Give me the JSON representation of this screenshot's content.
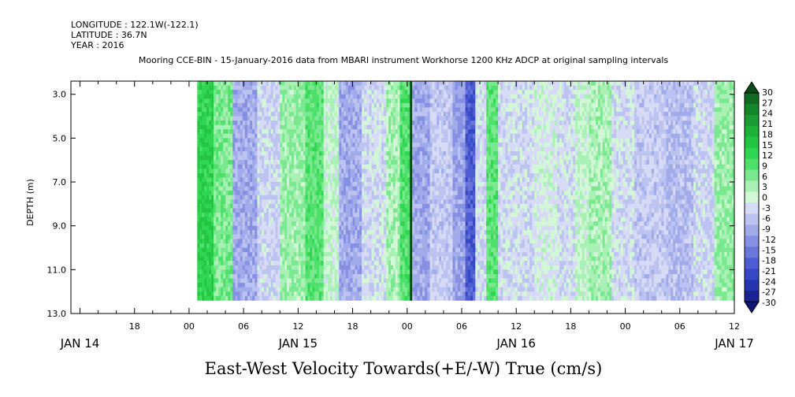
{
  "header": {
    "longitude": "LONGITUDE : 122.1W(-122.1)",
    "latitude": "LATITUDE : 36.7N",
    "year": "YEAR : 2016",
    "subtitle": "Mooring CCE-BIN - 15-January-2016 data from MBARI instrument Workhorse 1200 KHz ADCP at original sampling intervals"
  },
  "chart_data": {
    "type": "heatmap",
    "title": "East-West Velocity Towards(+E/-W) True (cm/s)",
    "ylabel": "DEPTH (m)",
    "y_reversed": true,
    "ylim": [
      13.0,
      2.4
    ],
    "yticks": [
      "3.0",
      "5.0",
      "7.0",
      "9.0",
      "11.0",
      "13.0"
    ],
    "x_unit": "hours since JAN 14 00",
    "xlim": [
      11,
      84
    ],
    "xticks": [
      "18",
      "00",
      "06",
      "12",
      "18",
      "00",
      "06",
      "12",
      "18",
      "00",
      "06",
      "12"
    ],
    "xtick_hours": [
      18,
      24,
      30,
      36,
      42,
      48,
      54,
      60,
      66,
      72,
      78,
      84
    ],
    "date_labels": [
      {
        "label": "JAN 14",
        "hour": 12
      },
      {
        "label": "JAN 15",
        "hour": 36
      },
      {
        "label": "JAN 16",
        "hour": 60
      },
      {
        "label": "JAN 17",
        "hour": 84
      }
    ],
    "data_start_hour": 24.9,
    "data_end_hour": 84,
    "velocity_bands": [
      {
        "from": 24.9,
        "to": 26.7,
        "value": 13
      },
      {
        "from": 26.7,
        "to": 28.8,
        "value": 6
      },
      {
        "from": 28.8,
        "to": 31.5,
        "value": -9
      },
      {
        "from": 31.5,
        "to": 34.0,
        "value": -4
      },
      {
        "from": 34.0,
        "to": 36.8,
        "value": 4
      },
      {
        "from": 36.8,
        "to": 38.8,
        "value": 8
      },
      {
        "from": 38.8,
        "to": 40.5,
        "value": 1
      },
      {
        "from": 40.5,
        "to": 43.0,
        "value": -9
      },
      {
        "from": 43.0,
        "to": 45.7,
        "value": -3
      },
      {
        "from": 45.7,
        "to": 47.2,
        "value": 3
      },
      {
        "from": 47.2,
        "to": 48.3,
        "value": 9
      },
      {
        "from": 48.3,
        "to": 48.55,
        "value": 30
      },
      {
        "from": 48.55,
        "to": 50.5,
        "value": -9
      },
      {
        "from": 50.5,
        "to": 53.0,
        "value": -5
      },
      {
        "from": 53.0,
        "to": 54.4,
        "value": -10
      },
      {
        "from": 54.4,
        "to": 55.5,
        "value": -18
      },
      {
        "from": 55.5,
        "to": 56.7,
        "value": -3
      },
      {
        "from": 56.7,
        "to": 58.0,
        "value": 8
      },
      {
        "from": 58.0,
        "to": 62.0,
        "value": -3
      },
      {
        "from": 62.0,
        "to": 64.5,
        "value": -1
      },
      {
        "from": 64.5,
        "to": 66.5,
        "value": -3
      },
      {
        "from": 66.5,
        "to": 68.0,
        "value": 1
      },
      {
        "from": 68.0,
        "to": 70.5,
        "value": 3
      },
      {
        "from": 70.5,
        "to": 73.0,
        "value": -3
      },
      {
        "from": 73.0,
        "to": 76.5,
        "value": -5
      },
      {
        "from": 76.5,
        "to": 79.5,
        "value": -7
      },
      {
        "from": 79.5,
        "to": 81.8,
        "value": -4
      },
      {
        "from": 81.8,
        "to": 84.0,
        "value": 4
      }
    ],
    "colorbar": {
      "labels": [
        "30",
        "27",
        "24",
        "21",
        "18",
        "15",
        "12",
        "9",
        "6",
        "3",
        "0",
        "-3",
        "-6",
        "-9",
        "-12",
        "-15",
        "-18",
        "-21",
        "-24",
        "-27",
        "-30"
      ],
      "colors": [
        "#0a4a1a",
        "#116b22",
        "#15852a",
        "#1a9b33",
        "#1fb23b",
        "#25c544",
        "#2fd652",
        "#4ee06a",
        "#79e88e",
        "#a8f0b4",
        "#d2f7d6",
        "#d6daf5",
        "#bcc3f0",
        "#a2abea",
        "#8690e3",
        "#6b76db",
        "#4f5dd3",
        "#3748c6",
        "#2634b0",
        "#1a2494",
        "#0e1572"
      ]
    }
  }
}
